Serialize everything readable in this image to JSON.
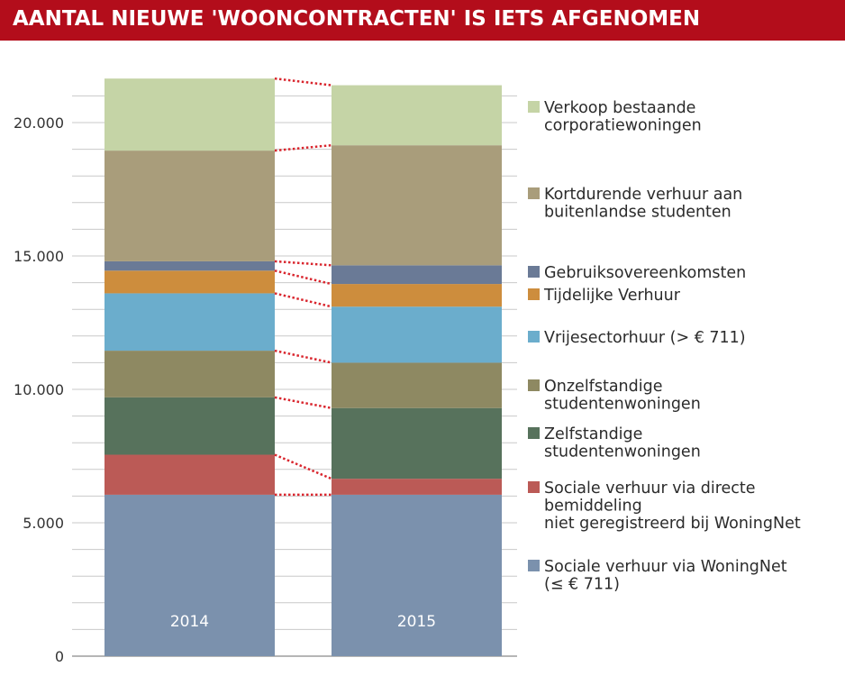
{
  "title": "AANTAL NIEUWE 'WOONCONTRACTEN' IS IETS AFGENOMEN",
  "colors": {
    "title_background": "#b30d1b",
    "connector": "#d9262e"
  },
  "chart_data": {
    "type": "bar",
    "stacked": true,
    "title": "AANTAL NIEUWE 'WOONCONTRACTEN' IS IETS AFGENOMEN",
    "xlabel": "",
    "ylabel": "",
    "ylim": [
      0,
      22500
    ],
    "yticks": [
      0,
      5000,
      10000,
      15000,
      20000
    ],
    "ytick_labels": [
      "0",
      "5.000",
      "10.000",
      "15.000",
      "20.000"
    ],
    "minor_tick_step": 1000,
    "grid": true,
    "categories": [
      "2014",
      "2015"
    ],
    "connectors": true,
    "legend_position": "right",
    "series": [
      {
        "name": "Sociale verhuur via WoningNet (≤ € 711)",
        "legend_lines": [
          "Sociale verhuur via WoningNet",
          "(≤ € 711)"
        ],
        "color": "#7b91ad",
        "values": [
          6050,
          6050
        ]
      },
      {
        "name": "Sociale verhuur via directe bemiddeling niet geregistreerd bij WoningNet",
        "legend_lines": [
          "Sociale verhuur via directe",
          "bemiddeling",
          "niet geregistreerd bij WoningNet"
        ],
        "color": "#bb5a56",
        "values": [
          1500,
          600
        ]
      },
      {
        "name": "Zelfstandige studentenwoningen",
        "legend_lines": [
          "Zelfstandige",
          "studentenwoningen"
        ],
        "color": "#57725c",
        "values": [
          2150,
          2650
        ]
      },
      {
        "name": "Onzelfstandige studentenwoningen",
        "legend_lines": [
          "Onzelfstandige",
          "studentenwoningen"
        ],
        "color": "#8e8962",
        "values": [
          1750,
          1700
        ]
      },
      {
        "name": "Vrijesectorhuur (> € 711)",
        "legend_lines": [
          "Vrijesectorhuur (> € 711)"
        ],
        "color": "#6badcc",
        "values": [
          2150,
          2100
        ]
      },
      {
        "name": "Tijdelijke Verhuur",
        "legend_lines": [
          "Tijdelijke Verhuur"
        ],
        "color": "#cd8d3d",
        "values": [
          850,
          850
        ]
      },
      {
        "name": "Gebruiksovereenkomsten",
        "legend_lines": [
          "Gebruiksovereenkomsten"
        ],
        "color": "#6a7a96",
        "values": [
          350,
          700
        ]
      },
      {
        "name": "Kortdurende verhuur aan buitenlandse studenten",
        "legend_lines": [
          "Kortdurende verhuur aan",
          "buitenlandse studenten"
        ],
        "color": "#a99d7b",
        "values": [
          4150,
          4500
        ]
      },
      {
        "name": "Verkoop bestaande corporatiewoningen",
        "legend_lines": [
          "Verkoop bestaande",
          "corporatiewoningen"
        ],
        "color": "#c5d4a6",
        "values": [
          2700,
          2250
        ]
      }
    ]
  }
}
